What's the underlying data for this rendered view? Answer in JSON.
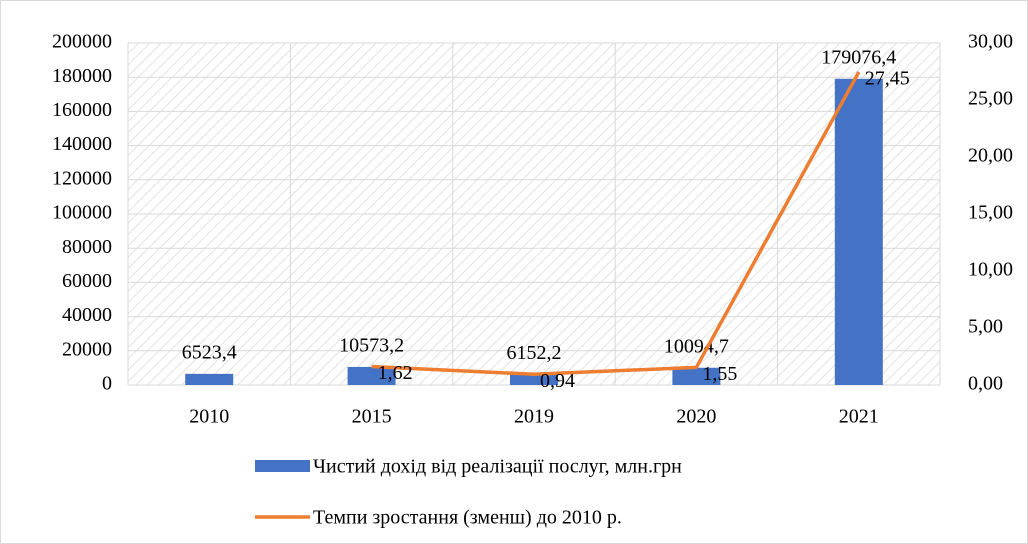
{
  "chart_data": {
    "type": "bar",
    "categories": [
      "2010",
      "2015",
      "2019",
      "2020",
      "2021"
    ],
    "series": [
      {
        "name": "Чистий дохід від реалізації послуг, млн.грн",
        "type": "bar",
        "axis": "y",
        "color": "#4472c4",
        "values": [
          6523.4,
          10573.2,
          6152.2,
          10094.7,
          179076.4
        ],
        "value_labels": [
          "6523,4",
          "10573,2",
          "6152,2",
          "10094,7",
          "179076,4"
        ]
      },
      {
        "name": "Темпи зростання (зменш) до 2010 р.",
        "type": "line",
        "axis": "y2",
        "color": "#ed7d31",
        "values": [
          null,
          1.62,
          0.94,
          1.55,
          27.45
        ],
        "value_labels": [
          null,
          "1,62",
          "0,94",
          "1,55",
          "27,45"
        ]
      }
    ],
    "ylim": [
      0,
      200000
    ],
    "yticks": [
      0,
      20000,
      40000,
      60000,
      80000,
      100000,
      120000,
      140000,
      160000,
      180000,
      200000
    ],
    "y2lim": [
      0,
      30
    ],
    "y2ticks": [
      {
        "value": 0,
        "label": "0,00"
      },
      {
        "value": 5,
        "label": "5,00"
      },
      {
        "value": 10,
        "label": "10,00"
      },
      {
        "value": 15,
        "label": "15,00"
      },
      {
        "value": 20,
        "label": "20,00"
      },
      {
        "value": 25,
        "label": "25,00"
      },
      {
        "value": 30,
        "label": "30,00"
      }
    ],
    "grid": true,
    "legend": "bottom"
  }
}
